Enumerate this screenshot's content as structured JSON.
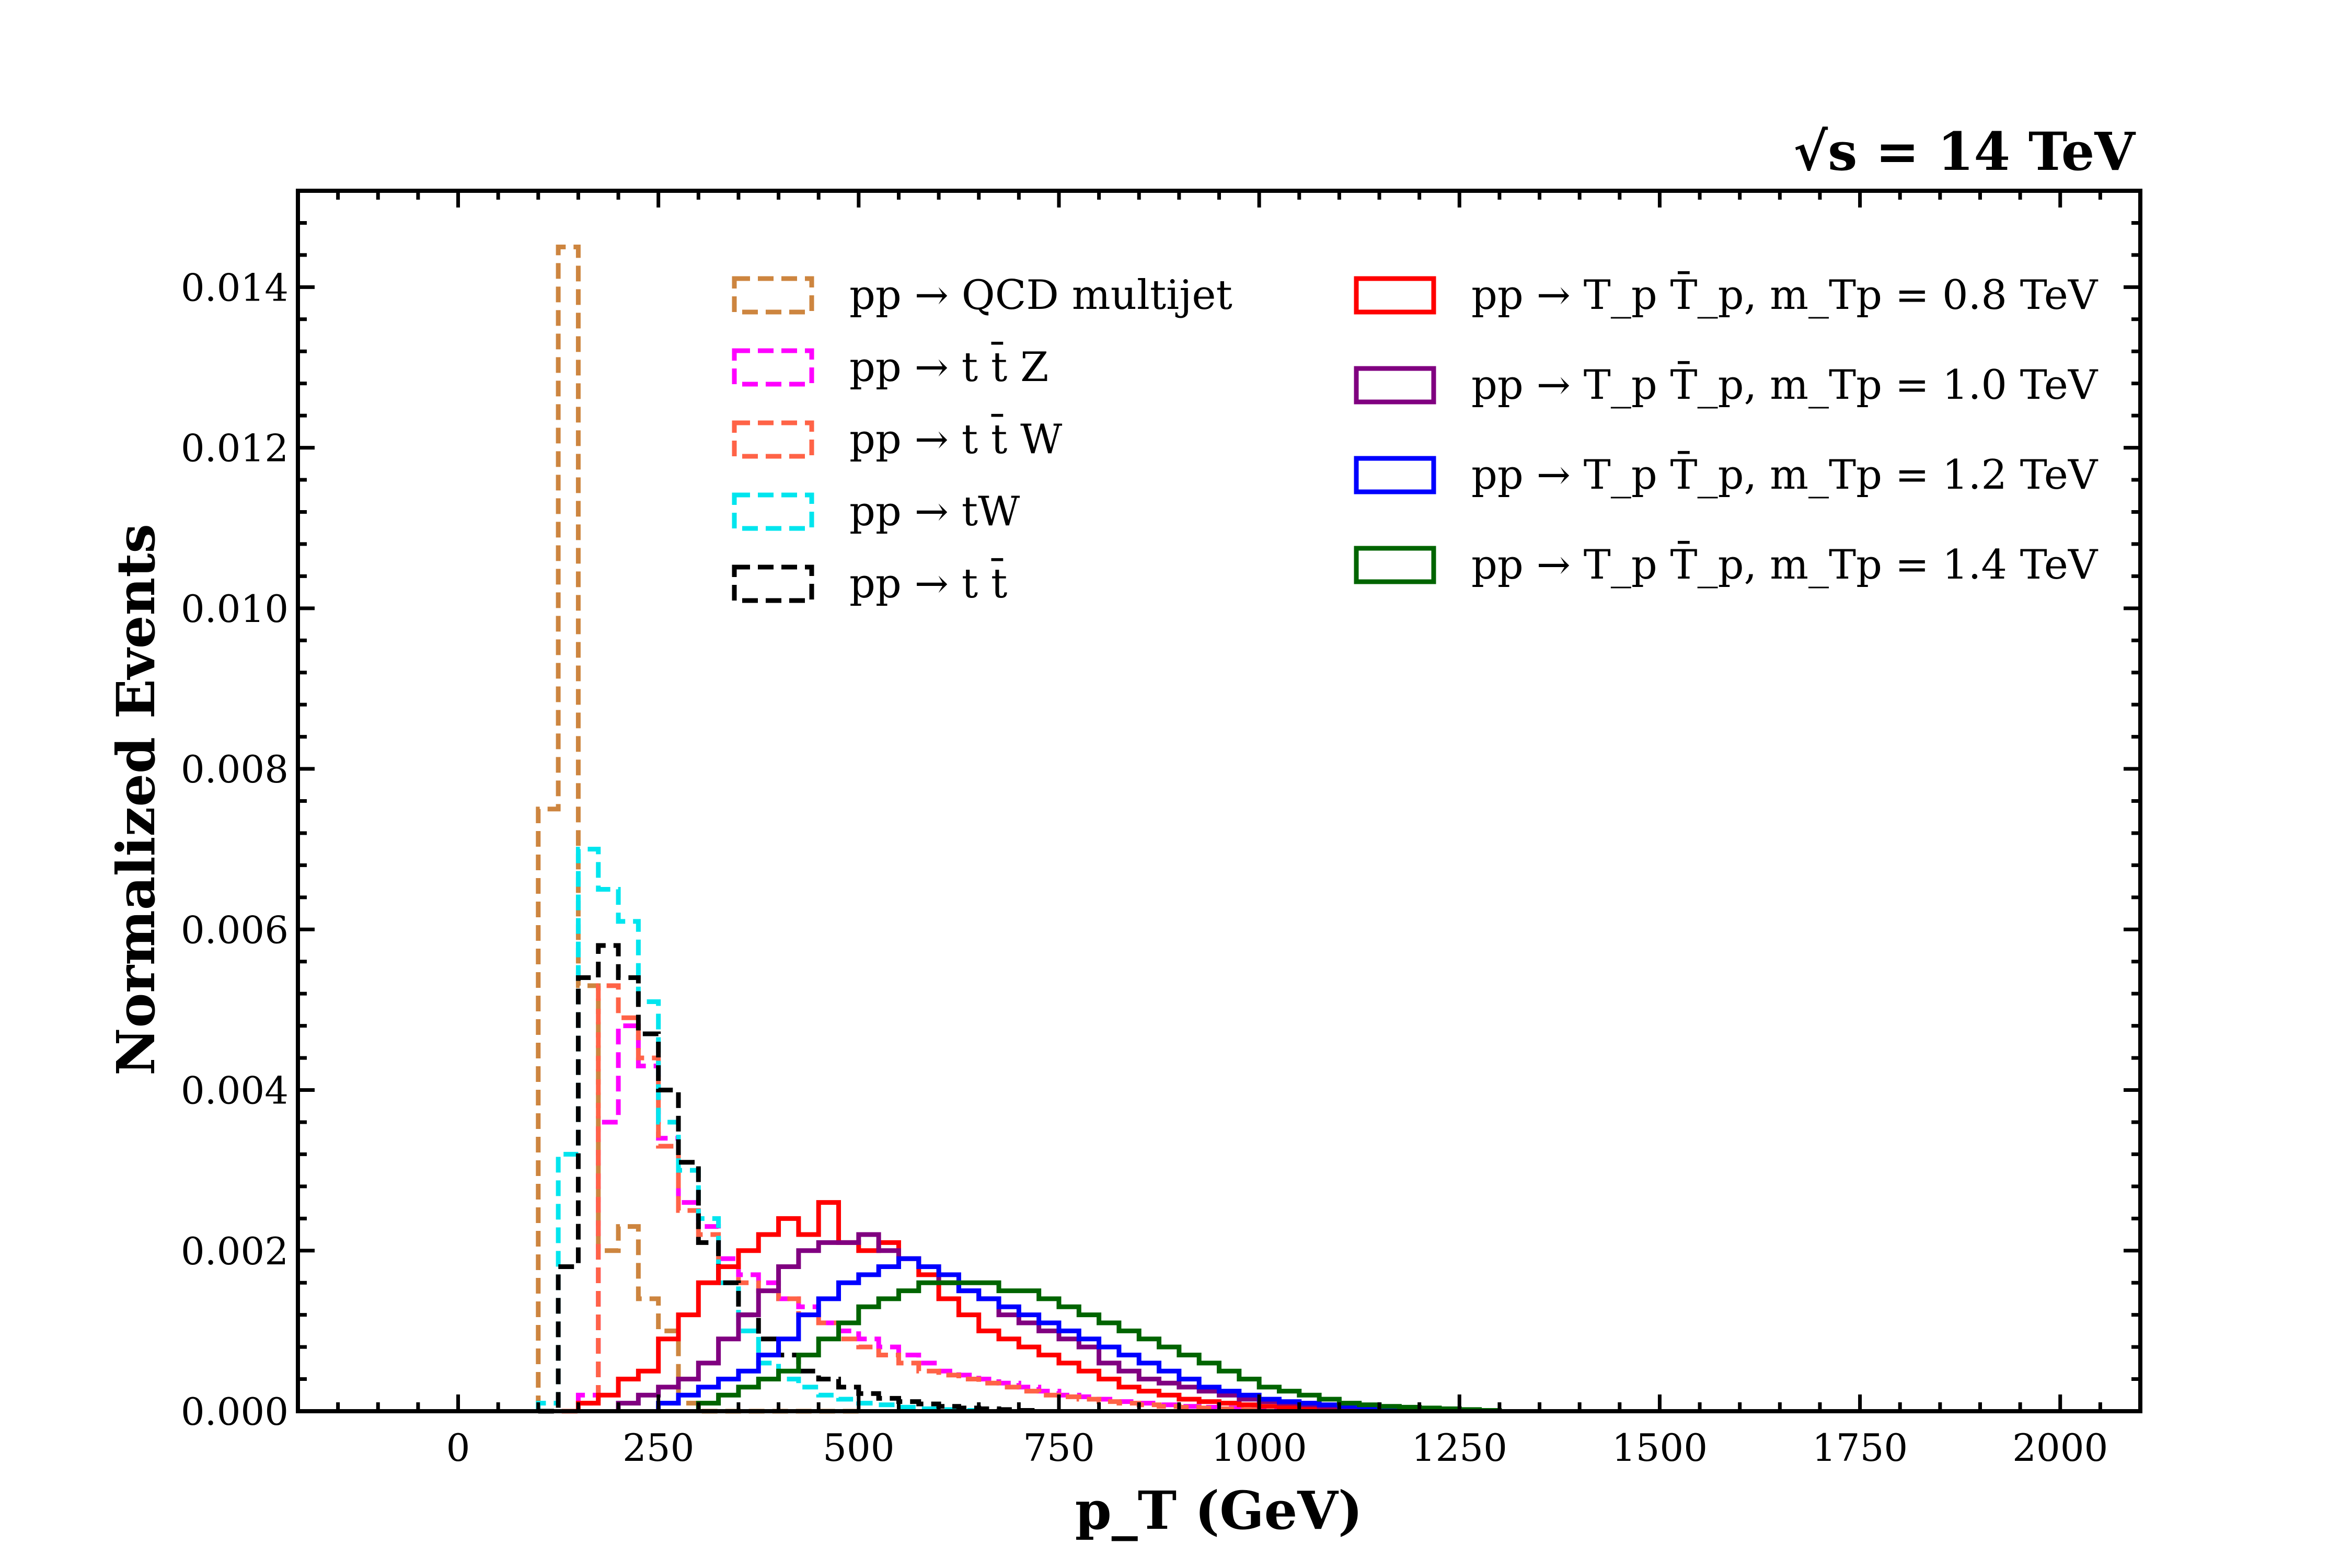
{
  "chart_data": {
    "type": "histogram-step",
    "energy_label": "√s = 14 TeV",
    "xlabel": "p_T (GeV)",
    "ylabel": "Normalized Events",
    "xlim": [
      -200,
      2100
    ],
    "ylim": [
      0,
      0.0152
    ],
    "bin_width": 25,
    "x_ticks": [
      0,
      250,
      500,
      750,
      1000,
      1250,
      1500,
      1750,
      2000
    ],
    "x_tick_labels": [
      "0",
      "250",
      "500",
      "750",
      "1000",
      "1250",
      "1500",
      "1750",
      "2000"
    ],
    "y_ticks": [
      0,
      0.002,
      0.004,
      0.006,
      0.008,
      0.01,
      0.012,
      0.014
    ],
    "y_tick_labels": [
      "0.000",
      "0.002",
      "0.004",
      "0.006",
      "0.008",
      "0.010",
      "0.012",
      "0.014"
    ],
    "series": [
      {
        "name": "pp → QCD multijet",
        "color": "#cd853f",
        "dashed": true,
        "x_start": 100,
        "values": [
          0.0075,
          0.0145,
          0.0053,
          0.002,
          0.0023,
          0.0014,
          0.001,
          0.0001,
          0,
          0,
          0,
          0,
          0,
          0,
          0,
          0
        ]
      },
      {
        "name": "pp → t t̄ Z",
        "color": "#ff00ff",
        "dashed": true,
        "x_start": 100,
        "values": [
          0,
          0,
          0.0002,
          0.0036,
          0.0048,
          0.0043,
          0.0034,
          0.0026,
          0.0023,
          0.0019,
          0.0017,
          0.0016,
          0.0014,
          0.0013,
          0.0011,
          0.001,
          0.0009,
          0.0008,
          0.0007,
          0.0006,
          0.0005,
          0.00045,
          0.0004,
          0.00035,
          0.0003,
          0.00025,
          0.0002,
          0.00018,
          0.00015,
          0.00012,
          0.0001,
          8e-05,
          6e-05,
          5e-05,
          4e-05,
          3e-05,
          2e-05,
          1e-05
        ]
      },
      {
        "name": "pp → t t̄ W",
        "color": "#ff6347",
        "dashed": true,
        "x_start": 100,
        "values": [
          0,
          0,
          0.0001,
          0.0053,
          0.0049,
          0.0044,
          0.0033,
          0.0025,
          0.0022,
          0.0018,
          0.0016,
          0.0015,
          0.0014,
          0.0012,
          0.0011,
          0.0009,
          0.0008,
          0.0007,
          0.0006,
          0.0005,
          0.00045,
          0.0004,
          0.00035,
          0.0003,
          0.00025,
          0.0002,
          0.00018,
          0.00015,
          0.00012,
          0.0001,
          8e-05,
          6e-05,
          5e-05,
          4e-05,
          3e-05,
          2e-05
        ]
      },
      {
        "name": "pp → tW",
        "color": "#00e5ee",
        "dashed": true,
        "x_start": 100,
        "values": [
          0.0001,
          0.0032,
          0.007,
          0.0065,
          0.0061,
          0.0051,
          0.0036,
          0.003,
          0.0024,
          0.0016,
          0.001,
          0.0006,
          0.0004,
          0.0003,
          0.0002,
          0.00015,
          0.0001,
          8e-05,
          5e-05,
          3e-05,
          2e-05,
          1e-05
        ]
      },
      {
        "name": "pp → t t̄",
        "color": "#000000",
        "dashed": true,
        "x_start": 100,
        "values": [
          0,
          0.0018,
          0.0054,
          0.0058,
          0.0054,
          0.0047,
          0.004,
          0.0031,
          0.0021,
          0.0016,
          0.0012,
          0.0009,
          0.0007,
          0.0005,
          0.0004,
          0.0003,
          0.00022,
          0.00016,
          0.00012,
          9e-05,
          6e-05,
          4e-05,
          3e-05,
          2e-05,
          1e-05
        ]
      },
      {
        "name": "pp → T_p T̄_p,  m_Tp = 0.8 TeV",
        "color": "#ff0000",
        "dashed": false,
        "x_start": 150,
        "values": [
          0.0001,
          0.0002,
          0.0004,
          0.0005,
          0.0009,
          0.0012,
          0.0016,
          0.0018,
          0.002,
          0.0022,
          0.0024,
          0.0022,
          0.0026,
          0.0021,
          0.002,
          0.0021,
          0.0019,
          0.0017,
          0.0014,
          0.0012,
          0.001,
          0.0009,
          0.0008,
          0.0007,
          0.0006,
          0.0005,
          0.0004,
          0.0003,
          0.00025,
          0.0002,
          0.00015,
          0.00012,
          0.0001,
          8e-05,
          6e-05,
          5e-05,
          4e-05,
          3e-05,
          2e-05,
          1e-05
        ]
      },
      {
        "name": "pp → T_p T̄_p,  m_Tp = 1.0 TeV",
        "color": "#800080",
        "dashed": false,
        "x_start": 200,
        "values": [
          0.0001,
          0.0002,
          0.0003,
          0.0004,
          0.0006,
          0.0009,
          0.0012,
          0.0015,
          0.0018,
          0.002,
          0.0021,
          0.0021,
          0.0022,
          0.002,
          0.0019,
          0.0018,
          0.0016,
          0.0015,
          0.0014,
          0.0012,
          0.0011,
          0.001,
          0.0009,
          0.0008,
          0.0006,
          0.0005,
          0.0004,
          0.00035,
          0.0003,
          0.00025,
          0.0002,
          0.00015,
          0.00012,
          0.0001,
          8e-05,
          6e-05,
          4e-05,
          2e-05
        ]
      },
      {
        "name": "pp → T_p T̄_p,  m_Tp = 1.2 TeV",
        "color": "#0000ff",
        "dashed": false,
        "x_start": 250,
        "values": [
          0.0001,
          0.0002,
          0.0003,
          0.0004,
          0.0005,
          0.0007,
          0.0009,
          0.0012,
          0.0014,
          0.0016,
          0.0017,
          0.0018,
          0.0019,
          0.0018,
          0.0017,
          0.0015,
          0.0014,
          0.0013,
          0.0012,
          0.0011,
          0.001,
          0.0009,
          0.0008,
          0.0007,
          0.0006,
          0.0005,
          0.0004,
          0.0003,
          0.00025,
          0.0002,
          0.00015,
          0.00012,
          0.0001,
          8e-05,
          6e-05,
          4e-05,
          3e-05,
          2e-05,
          1e-05
        ]
      },
      {
        "name": "pp → T_p T̄_p,  m_Tp = 1.4 TeV",
        "color": "#006400",
        "dashed": false,
        "x_start": 300,
        "values": [
          0.0001,
          0.0002,
          0.0003,
          0.0004,
          0.0005,
          0.0007,
          0.0009,
          0.0011,
          0.0013,
          0.0014,
          0.0015,
          0.0016,
          0.0016,
          0.0016,
          0.0016,
          0.0015,
          0.0015,
          0.0014,
          0.0013,
          0.0012,
          0.0011,
          0.001,
          0.0009,
          0.0008,
          0.0007,
          0.0006,
          0.0005,
          0.0004,
          0.0003,
          0.00025,
          0.0002,
          0.00015,
          0.0001,
          8e-05,
          6e-05,
          5e-05,
          4e-05,
          3e-05,
          2e-05,
          1e-05
        ]
      }
    ]
  }
}
